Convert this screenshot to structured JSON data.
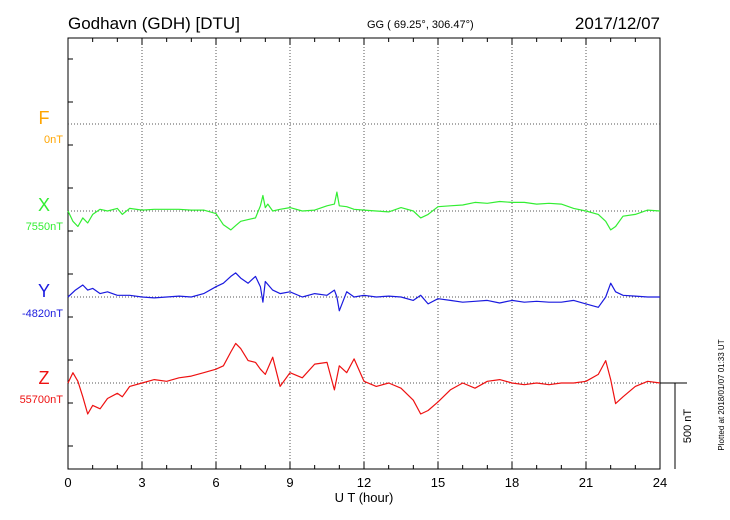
{
  "header": {
    "station": "Godhavn (GDH)  [DTU]",
    "coords": "GG ( 69.25°, 306.47°)",
    "date": "2017/12/07"
  },
  "side_note": "Plotted at 2018/01/07 01:33 UT",
  "scale_label": "500 nT",
  "chart_data": {
    "type": "line",
    "title": "Godhavn (GDH)  [DTU]",
    "xlabel": "U T (hour)",
    "xlim": [
      0,
      24
    ],
    "x_ticks": [
      "0",
      "3",
      "6",
      "9",
      "12",
      "15",
      "18",
      "21",
      "24"
    ],
    "grid": true,
    "scale_bar_nT": 500,
    "series": [
      {
        "name": "F",
        "baseline_label": "0nT",
        "color": "#ffa500",
        "x": [],
        "values": []
      },
      {
        "name": "X",
        "baseline_label": "7550nT",
        "color": "#33ee33",
        "x": [
          0.0,
          0.2,
          0.4,
          0.6,
          0.8,
          1.0,
          1.3,
          1.6,
          2.0,
          2.2,
          2.5,
          3.0,
          3.5,
          4.0,
          4.5,
          5.0,
          5.5,
          6.0,
          6.3,
          6.6,
          6.8,
          7.0,
          7.3,
          7.6,
          7.8,
          7.9,
          8.0,
          8.1,
          8.3,
          8.6,
          9.0,
          9.5,
          10.0,
          10.5,
          10.8,
          10.9,
          11.0,
          11.3,
          11.6,
          12.0,
          12.5,
          13.0,
          13.5,
          14.0,
          14.3,
          14.6,
          15.0,
          15.5,
          16.0,
          16.5,
          17.0,
          17.5,
          18.0,
          18.5,
          19.0,
          19.5,
          20.0,
          20.5,
          21.0,
          21.5,
          21.8,
          22.0,
          22.2,
          22.5,
          23.0,
          23.5,
          24.0
        ],
        "values": [
          0,
          -60,
          -90,
          -40,
          -70,
          -20,
          10,
          0,
          15,
          -20,
          15,
          5,
          10,
          10,
          10,
          5,
          5,
          -15,
          -80,
          -110,
          -85,
          -60,
          -50,
          -40,
          30,
          90,
          20,
          40,
          0,
          10,
          20,
          0,
          5,
          30,
          40,
          110,
          30,
          25,
          10,
          5,
          0,
          -5,
          20,
          0,
          -40,
          -20,
          25,
          30,
          35,
          50,
          45,
          55,
          50,
          50,
          40,
          45,
          40,
          15,
          0,
          -20,
          -60,
          -110,
          -90,
          -30,
          -20,
          5,
          0
        ]
      },
      {
        "name": "Y",
        "baseline_label": "-4820nT",
        "color": "#1a1adf",
        "x": [
          0.0,
          0.3,
          0.6,
          0.8,
          1.0,
          1.3,
          1.6,
          2.0,
          2.5,
          3.0,
          3.5,
          4.0,
          4.5,
          5.0,
          5.5,
          6.0,
          6.3,
          6.6,
          6.8,
          7.0,
          7.3,
          7.6,
          7.8,
          7.9,
          8.0,
          8.3,
          8.6,
          9.0,
          9.5,
          10.0,
          10.5,
          10.8,
          10.9,
          11.0,
          11.3,
          11.6,
          12.0,
          12.5,
          13.0,
          13.5,
          14.0,
          14.3,
          14.6,
          15.0,
          15.5,
          16.0,
          16.5,
          17.0,
          17.5,
          18.0,
          18.5,
          19.0,
          19.5,
          20.0,
          20.5,
          21.0,
          21.5,
          21.8,
          22.0,
          22.2,
          22.5,
          23.0,
          23.5,
          24.0
        ],
        "values": [
          0,
          40,
          70,
          40,
          50,
          20,
          30,
          10,
          10,
          0,
          -5,
          0,
          5,
          0,
          20,
          60,
          80,
          120,
          140,
          110,
          80,
          120,
          60,
          -30,
          90,
          40,
          20,
          30,
          0,
          20,
          10,
          40,
          0,
          -80,
          30,
          0,
          10,
          0,
          5,
          0,
          -20,
          10,
          -40,
          -10,
          -20,
          -30,
          -25,
          -20,
          -35,
          -20,
          -30,
          -25,
          -30,
          -30,
          -20,
          -40,
          -60,
          0,
          80,
          30,
          10,
          5,
          0,
          0
        ]
      },
      {
        "name": "Z",
        "baseline_label": "55700nT",
        "color": "#ee1111",
        "x": [
          0.0,
          0.2,
          0.4,
          0.6,
          0.8,
          1.0,
          1.3,
          1.6,
          2.0,
          2.2,
          2.5,
          3.0,
          3.5,
          4.0,
          4.5,
          5.0,
          5.5,
          6.0,
          6.3,
          6.6,
          6.8,
          7.0,
          7.3,
          7.6,
          7.8,
          8.0,
          8.3,
          8.6,
          9.0,
          9.5,
          10.0,
          10.5,
          10.8,
          11.0,
          11.3,
          11.6,
          12.0,
          12.5,
          13.0,
          13.5,
          14.0,
          14.3,
          14.6,
          15.0,
          15.5,
          16.0,
          16.5,
          17.0,
          17.5,
          18.0,
          18.5,
          19.0,
          19.5,
          20.0,
          20.5,
          21.0,
          21.5,
          21.8,
          22.0,
          22.2,
          22.5,
          23.0,
          23.5,
          24.0
        ],
        "values": [
          0,
          60,
          10,
          -80,
          -180,
          -130,
          -150,
          -90,
          -60,
          -80,
          -20,
          0,
          20,
          10,
          30,
          40,
          60,
          80,
          100,
          180,
          230,
          200,
          130,
          120,
          80,
          50,
          150,
          -20,
          60,
          30,
          110,
          120,
          -40,
          100,
          60,
          140,
          10,
          -20,
          0,
          -30,
          -100,
          -180,
          -160,
          -110,
          -40,
          0,
          -30,
          10,
          20,
          0,
          -10,
          0,
          -10,
          0,
          0,
          10,
          50,
          130,
          20,
          -120,
          -80,
          -20,
          10,
          0
        ]
      }
    ]
  }
}
